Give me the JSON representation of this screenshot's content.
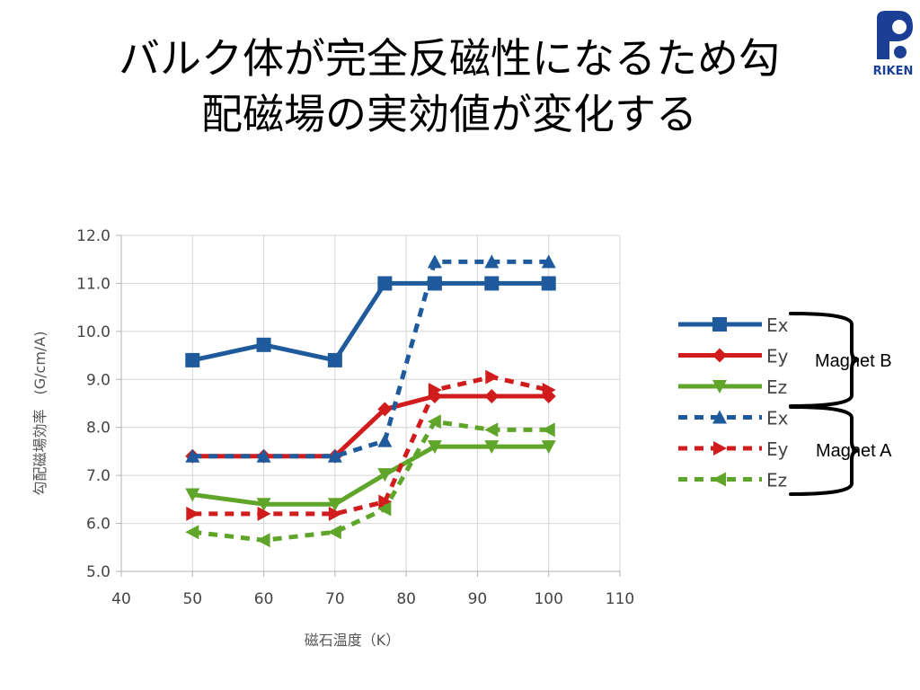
{
  "slide": {
    "title_line1": "バルク体が完全反磁性になるため勾",
    "title_line2": "配磁場の実効値が変化する",
    "logo_text": "RIKEN"
  },
  "annotations": {
    "magnet_b": "Magnet B",
    "magnet_a": "Magnet A"
  },
  "chart_data": {
    "type": "line",
    "title": "",
    "xlabel": "磁石温度（K）",
    "ylabel": "勾配磁場効率　(G/cm/A)",
    "xlim": [
      40,
      110
    ],
    "ylim": [
      5.0,
      12.0
    ],
    "xticks": [
      "40",
      "50",
      "60",
      "70",
      "80",
      "90",
      "100",
      "110"
    ],
    "yticks": [
      "5.0",
      "6.0",
      "7.0",
      "8.0",
      "9.0",
      "10.0",
      "11.0",
      "12.0"
    ],
    "grid": true,
    "legend_position": "right",
    "series": [
      {
        "name": "Ex",
        "color": "#1f5a9c",
        "style": "solid",
        "marker": "square",
        "x": [
          50,
          60,
          70,
          77,
          84,
          92,
          100
        ],
        "y": [
          9.4,
          9.72,
          9.4,
          11.0,
          11.0,
          11.0,
          11.0
        ]
      },
      {
        "name": "Ey",
        "color": "#d01c1c",
        "style": "solid",
        "marker": "diamond",
        "x": [
          50,
          60,
          70,
          77,
          84,
          92,
          100
        ],
        "y": [
          7.4,
          7.4,
          7.4,
          8.38,
          8.65,
          8.65,
          8.65
        ]
      },
      {
        "name": "Ez",
        "color": "#5fa52a",
        "style": "solid",
        "marker": "triangle-down",
        "x": [
          50,
          60,
          70,
          77,
          84,
          92,
          100
        ],
        "y": [
          6.6,
          6.4,
          6.4,
          7.02,
          7.6,
          7.6,
          7.6
        ]
      },
      {
        "name": "Ex",
        "color": "#1f5a9c",
        "style": "dashed",
        "marker": "triangle-up",
        "x": [
          50,
          60,
          70,
          77,
          84,
          92,
          100
        ],
        "y": [
          7.4,
          7.4,
          7.4,
          7.72,
          11.45,
          11.45,
          11.45
        ]
      },
      {
        "name": "Ey",
        "color": "#d01c1c",
        "style": "dashed",
        "marker": "triangle-right",
        "x": [
          50,
          60,
          70,
          77,
          84,
          92,
          100
        ],
        "y": [
          6.2,
          6.2,
          6.2,
          6.45,
          8.78,
          9.05,
          8.78
        ]
      },
      {
        "name": "Ez",
        "color": "#5fa52a",
        "style": "dashed",
        "marker": "triangle-left",
        "x": [
          50,
          60,
          70,
          77,
          84,
          92,
          100
        ],
        "y": [
          5.82,
          5.65,
          5.82,
          6.3,
          8.12,
          7.95,
          7.95
        ]
      }
    ]
  }
}
